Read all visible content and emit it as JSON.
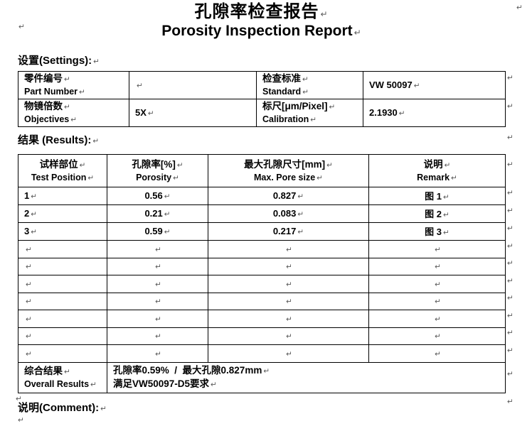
{
  "marks": {
    "pilcrow": "↵"
  },
  "titles": {
    "cjk": "孔隙率检查报告",
    "en": "Porosity Inspection Report"
  },
  "settings": {
    "heading": "设置(Settings):",
    "rows": [
      {
        "c1_cjk": "零件编号",
        "c1_en": "Part Number",
        "v1": "",
        "c2_cjk": "检查标准",
        "c2_en": "Standard",
        "v2": "VW 50097"
      },
      {
        "c1_cjk": "物镜倍数",
        "c1_en": "Objectives",
        "v1": "5X",
        "c2_cjk": "标尺[μm/Pixel]",
        "c2_en": "Calibration",
        "v2": "2.1930"
      }
    ]
  },
  "results": {
    "heading": "结果 (Results):",
    "columns": [
      {
        "cjk": "试样部位",
        "en": "Test Position"
      },
      {
        "cjk": "孔隙率[%]",
        "en": "Porosity"
      },
      {
        "cjk": "最大孔隙尺寸[mm]",
        "en": "Max. Pore size"
      },
      {
        "cjk": "说明",
        "en": "Remark"
      }
    ],
    "rows": [
      {
        "position": "1",
        "porosity": "0.56",
        "max_pore": "0.827",
        "remark": "图 1"
      },
      {
        "position": "2",
        "porosity": "0.21",
        "max_pore": "0.083",
        "remark": "图 2"
      },
      {
        "position": "3",
        "porosity": "0.59",
        "max_pore": "0.217",
        "remark": "图 3"
      }
    ],
    "empty_rows": 7,
    "overall": {
      "label_cjk": "综合结果",
      "label_en": "Overall Results",
      "value_line1": "孔隙率0.59%  /  最大孔隙0.827mm",
      "value_line2": "满足VW50097-D5要求"
    }
  },
  "comment": {
    "heading": "说明(Comment):"
  }
}
